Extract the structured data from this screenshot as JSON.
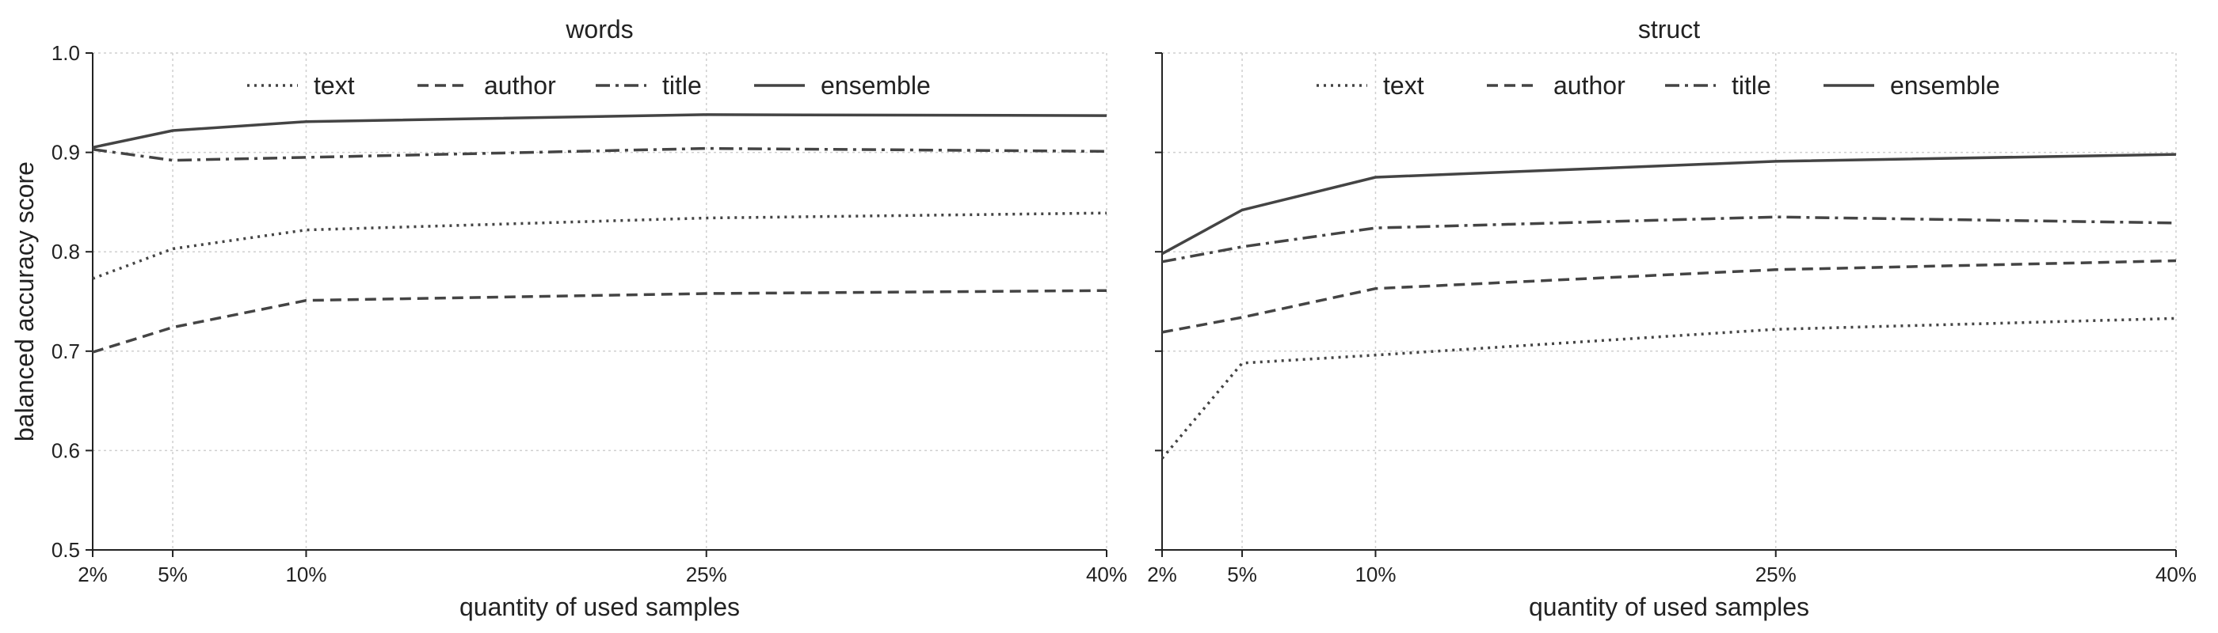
{
  "colors": {
    "series": "#444444",
    "axis": "#222222",
    "grid": "#cfcfcf",
    "background": "#ffffff"
  },
  "chart_data": [
    {
      "type": "line",
      "title": "words",
      "xlabel": "quantity of used samples",
      "ylabel": "balanced accuracy score",
      "x": [
        2,
        5,
        10,
        25,
        40
      ],
      "x_tick_labels": [
        "2%",
        "5%",
        "10%",
        "25%",
        "40%"
      ],
      "xlim": [
        2,
        40
      ],
      "ylim": [
        0.5,
        1.0
      ],
      "y_ticks": [
        "0.5",
        "0.6",
        "0.7",
        "0.8",
        "0.9",
        "1.0"
      ],
      "grid": true,
      "legend_position": "top-center, single row",
      "series": [
        {
          "name": "text",
          "style": "dotted",
          "values": [
            0.773,
            0.803,
            0.822,
            0.834,
            0.839
          ]
        },
        {
          "name": "author",
          "style": "dashed",
          "values": [
            0.699,
            0.724,
            0.751,
            0.758,
            0.761
          ]
        },
        {
          "name": "title",
          "style": "dashdot",
          "values": [
            0.903,
            0.892,
            0.895,
            0.904,
            0.901
          ]
        },
        {
          "name": "ensemble",
          "style": "solid",
          "values": [
            0.905,
            0.922,
            0.931,
            0.938,
            0.937
          ]
        }
      ]
    },
    {
      "type": "line",
      "title": "struct",
      "xlabel": "quantity of used samples",
      "ylabel": "",
      "x": [
        2,
        5,
        10,
        25,
        40
      ],
      "x_tick_labels": [
        "2%",
        "5%",
        "10%",
        "25%",
        "40%"
      ],
      "xlim": [
        2,
        40
      ],
      "ylim": [
        0.5,
        1.0
      ],
      "y_ticks": [],
      "grid": true,
      "legend_position": "top-center, single row",
      "series": [
        {
          "name": "text",
          "style": "dotted",
          "values": [
            0.592,
            0.688,
            0.696,
            0.722,
            0.733
          ]
        },
        {
          "name": "author",
          "style": "dashed",
          "values": [
            0.719,
            0.734,
            0.763,
            0.782,
            0.791
          ]
        },
        {
          "name": "title",
          "style": "dashdot",
          "values": [
            0.79,
            0.805,
            0.824,
            0.835,
            0.829
          ]
        },
        {
          "name": "ensemble",
          "style": "solid",
          "values": [
            0.798,
            0.842,
            0.875,
            0.891,
            0.898
          ]
        }
      ]
    }
  ]
}
